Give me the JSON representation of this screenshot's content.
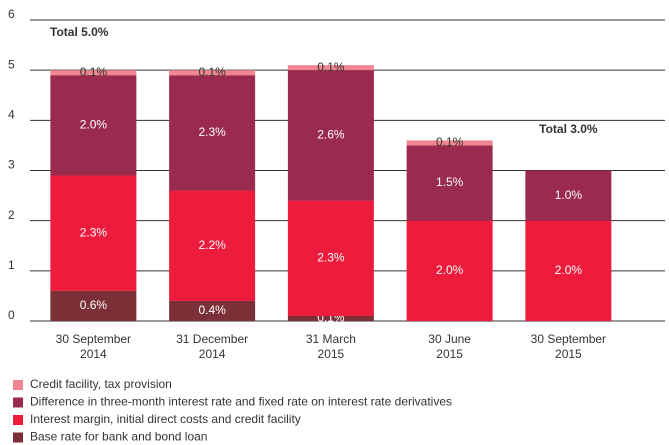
{
  "chart_data": {
    "type": "stacked_bar",
    "categories": [
      [
        "30 September",
        "2014"
      ],
      [
        "31 December",
        "2014"
      ],
      [
        "31 March",
        "2015"
      ],
      [
        "30 June",
        "2015"
      ],
      [
        "30 September",
        "2015"
      ]
    ],
    "series": [
      {
        "name": "Base rate for bank and bond loan",
        "color": "#7b2f36",
        "values": [
          0.6,
          0.4,
          0.1,
          null,
          null
        ],
        "value_labels": [
          "0.6%",
          "0.4%",
          "0.1%",
          null,
          null
        ]
      },
      {
        "name": "Interest margin, initial direct costs and credit facility",
        "color": "#ee1c3c",
        "values": [
          2.3,
          2.2,
          2.3,
          2.0,
          2.0
        ],
        "value_labels": [
          "2.3%",
          "2.2%",
          "2.3%",
          "2.0%",
          "2.0%"
        ]
      },
      {
        "name": "Difference in three-month interest rate and fixed rate on interest rate derivatives",
        "color": "#9b2a4f",
        "values": [
          2.0,
          2.3,
          2.6,
          1.5,
          1.0
        ],
        "value_labels": [
          "2.0%",
          "2.3%",
          "2.6%",
          "1.5%",
          "1.0%"
        ]
      },
      {
        "name": "Credit facility, tax provision",
        "color": "#f0868f",
        "values": [
          0.1,
          0.1,
          0.1,
          0.1,
          null
        ],
        "value_labels": [
          "0.1%",
          "0.1%",
          "0.1%",
          "0.1%",
          null
        ]
      }
    ],
    "annotations": [
      "Total 5.0%",
      "Total 3.0%"
    ],
    "ylim": [
      0,
      6
    ],
    "yticks": [
      0,
      1,
      2,
      3,
      4,
      5,
      6
    ],
    "grid": true
  }
}
